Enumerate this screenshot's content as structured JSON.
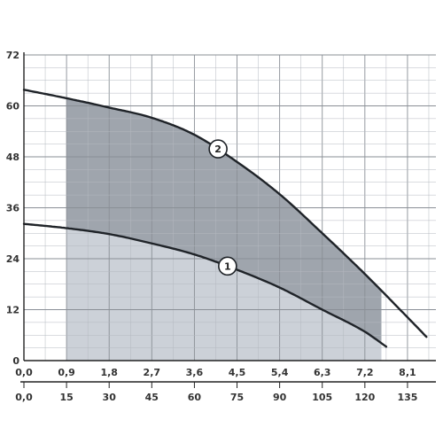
{
  "chart_data": {
    "type": "line",
    "xlabel": "",
    "ylabel": "",
    "x_primary": {
      "range": [
        0.0,
        8.7
      ],
      "ticks": [
        "0,0",
        "0,9",
        "1,8",
        "2,7",
        "3,6",
        "4,5",
        "5,4",
        "6,3",
        "7,2",
        "8,1"
      ],
      "tick_values": [
        0.0,
        0.9,
        1.8,
        2.7,
        3.6,
        4.5,
        5.4,
        6.3,
        7.2,
        8.1
      ]
    },
    "x_secondary": {
      "range": [
        0,
        145
      ],
      "ticks": [
        "0,0",
        "15",
        "30",
        "45",
        "60",
        "75",
        "90",
        "105",
        "120",
        "135"
      ],
      "tick_values": [
        0,
        15,
        30,
        45,
        60,
        75,
        90,
        105,
        120,
        135
      ]
    },
    "y": {
      "range": [
        0,
        72
      ],
      "ticks": [
        "0",
        "12",
        "24",
        "36",
        "48",
        "60",
        "72"
      ],
      "tick_values": [
        0,
        12,
        24,
        36,
        48,
        60,
        72
      ]
    },
    "grid": true,
    "series": [
      {
        "name": "1",
        "x": [
          0.0,
          0.9,
          1.8,
          2.7,
          3.6,
          4.5,
          5.4,
          6.3,
          7.2,
          7.65
        ],
        "y": [
          32.2,
          31.2,
          29.8,
          27.6,
          25.0,
          21.4,
          17.2,
          12.0,
          6.8,
          3.3
        ]
      },
      {
        "name": "2",
        "x": [
          0.0,
          0.9,
          1.8,
          2.7,
          3.6,
          4.5,
          5.4,
          6.3,
          7.2,
          8.1,
          8.5
        ],
        "y": [
          63.8,
          61.8,
          59.6,
          57.2,
          53.2,
          46.8,
          39.2,
          30.0,
          20.4,
          10.2,
          5.6
        ]
      }
    ],
    "shaded_regions": [
      {
        "name": "operating-range-upper",
        "x_range": [
          0.9,
          7.55
        ],
        "between": [
          "1",
          "2"
        ],
        "color": "#9fa5ad"
      },
      {
        "name": "operating-range-lower",
        "x_range": [
          0.9,
          7.55
        ],
        "below": "1",
        "color": "#ccd1d8"
      }
    ],
    "colors": {
      "curve": "#1f2328",
      "grid_major": "#8a8f96",
      "grid_minor": "#b4b9c0",
      "fill_upper": "#9fa5ad",
      "fill_lower": "#ccd1d8",
      "axis": "#222222"
    }
  }
}
